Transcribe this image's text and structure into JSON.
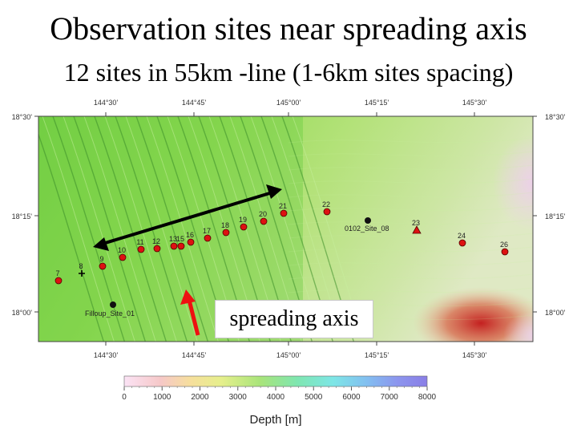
{
  "title": "Observation sites near spreading axis",
  "subtitle": "12 sites in 55km -line (1-6km sites spacing)",
  "annotation": "spreading axis",
  "map": {
    "lon_ticks": [
      "144°30'",
      "144°45'",
      "145°00'",
      "145°15'",
      "145°30'"
    ],
    "lat_ticks": [
      "18°30'",
      "18°15'",
      "18°00'"
    ],
    "sites": [
      {
        "label": "7",
        "marker": "circle"
      },
      {
        "label": "8",
        "marker": "plus"
      },
      {
        "label": "9",
        "marker": "circle"
      },
      {
        "label": "10",
        "marker": "circle"
      },
      {
        "label": "11",
        "marker": "circle"
      },
      {
        "label": "12",
        "marker": "circle"
      },
      {
        "label": "13",
        "marker": "circle"
      },
      {
        "label": "15",
        "marker": "circle"
      },
      {
        "label": "16",
        "marker": "circle"
      },
      {
        "label": "17",
        "marker": "circle"
      },
      {
        "label": "18",
        "marker": "circle"
      },
      {
        "label": "19",
        "marker": "circle"
      },
      {
        "label": "20",
        "marker": "circle"
      },
      {
        "label": "21",
        "marker": "circle"
      },
      {
        "label": "22",
        "marker": "circle"
      },
      {
        "label": "23",
        "marker": "triangle"
      },
      {
        "label": "24",
        "marker": "circle"
      },
      {
        "label": "26",
        "marker": "circle"
      }
    ],
    "black_sites": [
      "0102_Site_08",
      "Filloup_Site_01"
    ]
  },
  "colorbar": {
    "title": "Depth [m]",
    "ticks": [
      "0",
      "1000",
      "2000",
      "3000",
      "4000",
      "5000",
      "6000",
      "7000",
      "8000"
    ]
  },
  "colors": {
    "site_marker": "#dd1111",
    "black_marker": "#111111",
    "arrow_black": "#000000",
    "arrow_red": "#ee1111"
  }
}
